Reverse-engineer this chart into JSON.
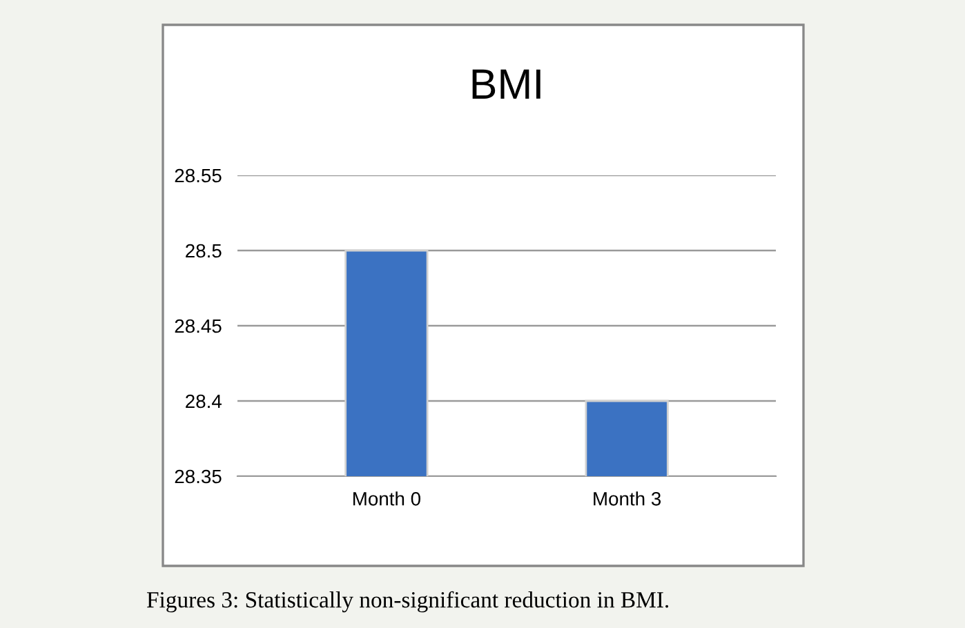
{
  "chart_data": {
    "type": "bar",
    "title": "BMI",
    "categories": [
      "Month 0",
      "Month 3"
    ],
    "values": [
      28.5,
      28.4
    ],
    "color": "#3b72c2",
    "ylim": [
      28.35,
      28.55
    ],
    "yticks": [
      28.35,
      28.4,
      28.45,
      28.5,
      28.55
    ],
    "grid": "y",
    "annotations": [
      "Figures 3: Statistically non-significant reduction in BMI."
    ]
  }
}
